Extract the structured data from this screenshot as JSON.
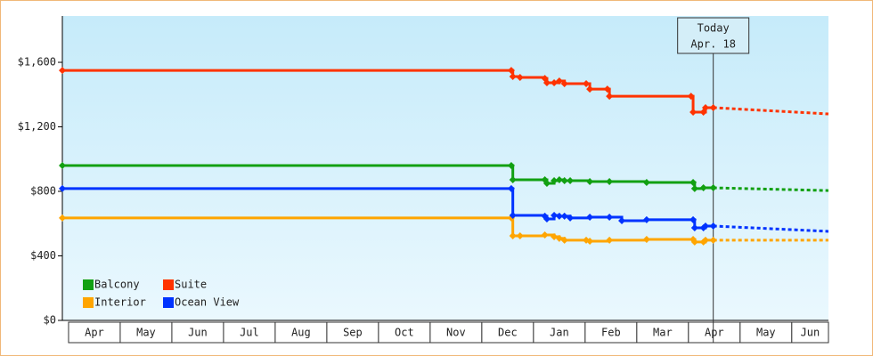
{
  "chart_data": {
    "type": "step",
    "xlim": [
      -0.12,
      14.71
    ],
    "xticks": [
      {
        "value": 0.5,
        "label": "Apr"
      },
      {
        "value": 1.5,
        "label": "May"
      },
      {
        "value": 2.5,
        "label": "Jun"
      },
      {
        "value": 3.5,
        "label": "Jul"
      },
      {
        "value": 4.5,
        "label": "Aug"
      },
      {
        "value": 5.5,
        "label": "Sep"
      },
      {
        "value": 6.5,
        "label": "Oct"
      },
      {
        "value": 7.5,
        "label": "Nov"
      },
      {
        "value": 8.5,
        "label": "Dec"
      },
      {
        "value": 9.5,
        "label": "Jan"
      },
      {
        "value": 10.5,
        "label": "Feb"
      },
      {
        "value": 11.5,
        "label": "Mar"
      },
      {
        "value": 12.5,
        "label": "Apr"
      },
      {
        "value": 13.5,
        "label": "May"
      },
      {
        "value": 14.5,
        "label": "Jun"
      }
    ],
    "ylim": [
      0,
      1876
    ],
    "yticks": [
      {
        "value": 0,
        "label": "$0"
      },
      {
        "value": 400,
        "label": "$400"
      },
      {
        "value": 800,
        "label": "$800"
      },
      {
        "value": 1200,
        "label": "$1,200"
      },
      {
        "value": 1600,
        "label": "$1,600"
      }
    ],
    "grid": false,
    "legend": "lower left",
    "annotations": [
      {
        "x": 12.48,
        "lines": [
          "Today",
          "Apr. 18"
        ]
      }
    ],
    "series": [
      {
        "name": "Balcony",
        "color": "#12a012",
        "x": [
          -0.12,
          8.57,
          8.6,
          9.22,
          9.26,
          9.4,
          9.5,
          9.6,
          9.71,
          10.09,
          10.47,
          11.19,
          12.09,
          12.12,
          12.29,
          12.48
        ],
        "values": [
          960,
          960,
          872,
          872,
          850,
          866,
          872,
          866,
          866,
          861,
          861,
          855,
          855,
          817,
          822,
          822
        ],
        "forecast_x": [
          12.48,
          14.71
        ],
        "forecast_values": [
          822,
          805
        ]
      },
      {
        "name": "Interior",
        "color": "#ffa500",
        "x": [
          -0.12,
          8.57,
          8.6,
          8.74,
          9.22,
          9.4,
          9.5,
          9.6,
          10.02,
          10.09,
          10.47,
          11.19,
          12.09,
          12.12,
          12.29,
          12.33,
          12.48
        ],
        "values": [
          635,
          635,
          524,
          524,
          530,
          519,
          508,
          497,
          497,
          491,
          497,
          502,
          502,
          486,
          486,
          497,
          497
        ],
        "forecast_x": [
          12.48,
          14.71
        ],
        "forecast_values": [
          497,
          497
        ]
      },
      {
        "name": "Suite",
        "color": "#ff3300",
        "x": [
          -0.12,
          8.57,
          8.6,
          8.74,
          9.22,
          9.26,
          9.4,
          9.5,
          9.6,
          10.02,
          10.09,
          10.43,
          10.47,
          12.05,
          12.09,
          12.29,
          12.33,
          12.48
        ],
        "values": [
          1550,
          1550,
          1512,
          1506,
          1500,
          1473,
          1473,
          1484,
          1468,
          1468,
          1434,
          1434,
          1390,
          1390,
          1291,
          1291,
          1319,
          1319
        ],
        "forecast_x": [
          12.48,
          14.71
        ],
        "forecast_values": [
          1319,
          1280
        ]
      },
      {
        "name": "Ocean View",
        "color": "#0033ff",
        "x": [
          -0.12,
          8.57,
          8.6,
          9.22,
          9.26,
          9.4,
          9.5,
          9.6,
          9.71,
          10.09,
          10.47,
          10.71,
          11.19,
          12.09,
          12.12,
          12.29,
          12.33,
          12.48
        ],
        "values": [
          817,
          817,
          651,
          646,
          629,
          651,
          646,
          646,
          635,
          640,
          640,
          618,
          624,
          624,
          574,
          574,
          585,
          585
        ],
        "forecast_x": [
          12.48,
          14.71
        ],
        "forecast_values": [
          585,
          552
        ]
      }
    ]
  }
}
